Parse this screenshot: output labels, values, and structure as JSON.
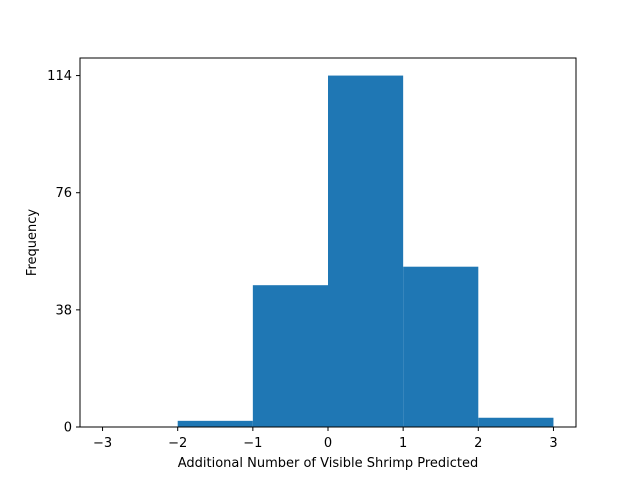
{
  "chart_data": {
    "type": "bar",
    "title": "",
    "xlabel": "Additional Number of Visible Shrimp Predicted",
    "ylabel": "Frequency",
    "bins": [
      {
        "x0": -2,
        "x1": -1,
        "value": 2
      },
      {
        "x0": -1,
        "x1": 0,
        "value": 46
      },
      {
        "x0": 0,
        "x1": 1,
        "value": 114
      },
      {
        "x0": 1,
        "x1": 2,
        "value": 52
      },
      {
        "x0": 2,
        "x1": 3,
        "value": 3
      }
    ],
    "xlim": [
      -3.3,
      3.3
    ],
    "ylim": [
      0,
      119.7
    ],
    "xticks": [
      -3,
      -2,
      -1,
      0,
      1,
      2,
      3
    ],
    "xtick_labels": [
      "−3",
      "−2",
      "−1",
      "0",
      "1",
      "2",
      "3"
    ],
    "yticks": [
      0,
      38,
      76,
      114
    ],
    "ytick_labels": [
      "0",
      "38",
      "76",
      "114"
    ],
    "bar_color": "#1f77b4",
    "grid": false,
    "legend": "none"
  }
}
